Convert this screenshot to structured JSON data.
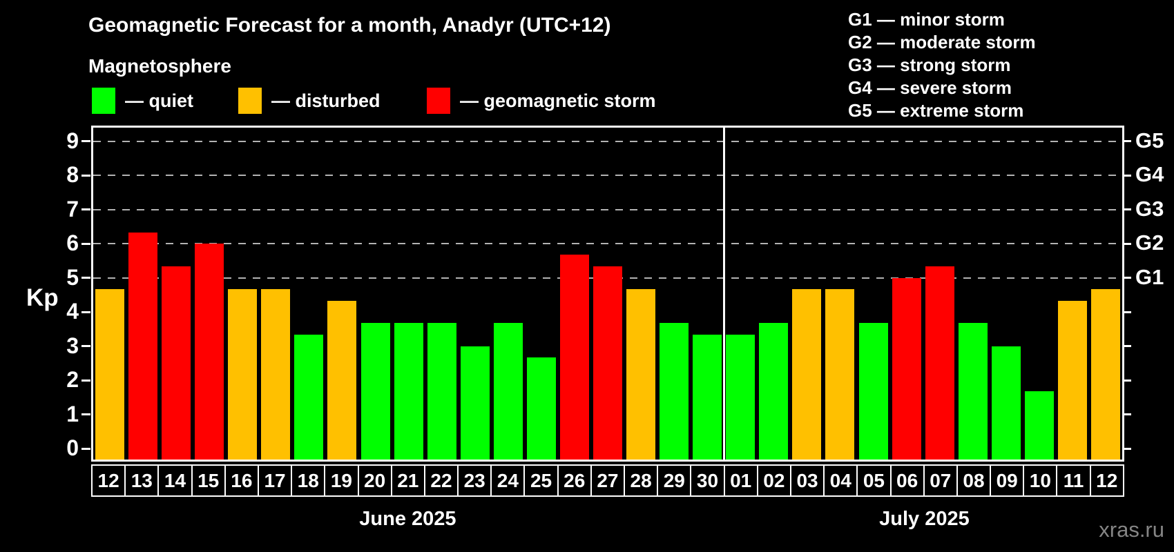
{
  "title": "Geomagnetic Forecast for a month, Anadyr (UTC+12)",
  "subtitle": "Magnetosphere",
  "legend": [
    {
      "key": "quiet",
      "label": "— quiet",
      "color": "#00ff00"
    },
    {
      "key": "disturbed",
      "label": "— disturbed",
      "color": "#ffc000"
    },
    {
      "key": "storm",
      "label": "— geomagnetic storm",
      "color": "#ff0000"
    }
  ],
  "g_legend": [
    "G1 — minor storm",
    "G2 — moderate storm",
    "G3 — strong storm",
    "G4 — severe storm",
    "G5 — extreme storm"
  ],
  "watermark": "xras.ru",
  "chart_data": {
    "type": "bar",
    "title": "Geomagnetic Forecast for a month, Anadyr (UTC+12)",
    "ylabel": "Kp",
    "ylim": [
      0,
      9
    ],
    "y_ticks": [
      0,
      1,
      2,
      3,
      4,
      5,
      6,
      7,
      8,
      9
    ],
    "grid": "dashed horizontal lines at Kp 5-9 only",
    "legend_position": "top-left",
    "g_levels": [
      {
        "kp": 5,
        "label": "G1"
      },
      {
        "kp": 6,
        "label": "G2"
      },
      {
        "kp": 7,
        "label": "G3"
      },
      {
        "kp": 8,
        "label": "G4"
      },
      {
        "kp": 9,
        "label": "G5"
      }
    ],
    "months": [
      {
        "label": "June 2025",
        "key": "jun",
        "days": [
          {
            "day": "12",
            "kp": 4.67,
            "status": "disturbed"
          },
          {
            "day": "13",
            "kp": 6.33,
            "status": "storm"
          },
          {
            "day": "14",
            "kp": 5.33,
            "status": "storm"
          },
          {
            "day": "15",
            "kp": 6.0,
            "status": "storm"
          },
          {
            "day": "16",
            "kp": 4.67,
            "status": "disturbed"
          },
          {
            "day": "17",
            "kp": 4.67,
            "status": "disturbed"
          },
          {
            "day": "18",
            "kp": 3.33,
            "status": "quiet"
          },
          {
            "day": "19",
            "kp": 4.33,
            "status": "disturbed"
          },
          {
            "day": "20",
            "kp": 3.67,
            "status": "quiet"
          },
          {
            "day": "21",
            "kp": 3.67,
            "status": "quiet"
          },
          {
            "day": "22",
            "kp": 3.67,
            "status": "quiet"
          },
          {
            "day": "23",
            "kp": 3.0,
            "status": "quiet"
          },
          {
            "day": "24",
            "kp": 3.67,
            "status": "quiet"
          },
          {
            "day": "25",
            "kp": 2.67,
            "status": "quiet"
          },
          {
            "day": "26",
            "kp": 5.67,
            "status": "storm"
          },
          {
            "day": "27",
            "kp": 5.33,
            "status": "storm"
          },
          {
            "day": "28",
            "kp": 4.67,
            "status": "disturbed"
          },
          {
            "day": "29",
            "kp": 3.67,
            "status": "quiet"
          },
          {
            "day": "30",
            "kp": 3.33,
            "status": "quiet"
          }
        ]
      },
      {
        "label": "July 2025",
        "key": "jul",
        "days": [
          {
            "day": "01",
            "kp": 3.33,
            "status": "quiet"
          },
          {
            "day": "02",
            "kp": 3.67,
            "status": "quiet"
          },
          {
            "day": "03",
            "kp": 4.67,
            "status": "disturbed"
          },
          {
            "day": "04",
            "kp": 4.67,
            "status": "disturbed"
          },
          {
            "day": "05",
            "kp": 3.67,
            "status": "quiet"
          },
          {
            "day": "06",
            "kp": 5.0,
            "status": "storm"
          },
          {
            "day": "07",
            "kp": 5.33,
            "status": "storm"
          },
          {
            "day": "08",
            "kp": 3.67,
            "status": "quiet"
          },
          {
            "day": "09",
            "kp": 3.0,
            "status": "quiet"
          },
          {
            "day": "10",
            "kp": 1.67,
            "status": "quiet"
          },
          {
            "day": "11",
            "kp": 4.33,
            "status": "disturbed"
          },
          {
            "day": "12",
            "kp": 4.67,
            "status": "disturbed"
          }
        ]
      }
    ]
  }
}
